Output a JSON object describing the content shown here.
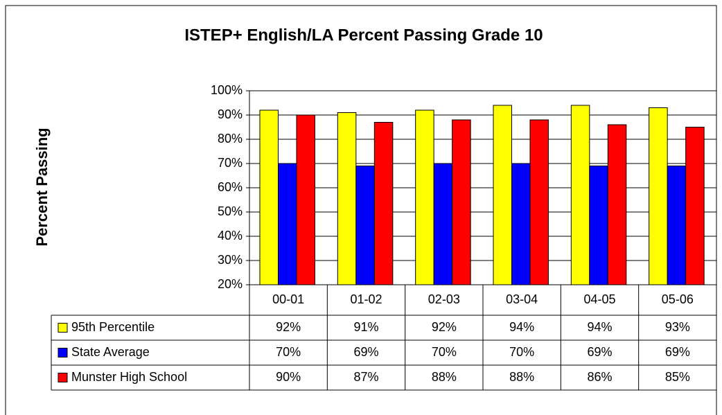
{
  "chart_data": {
    "type": "bar",
    "title": "ISTEP+ English/LA Percent Passing Grade 10",
    "y_label": "Percent Passing",
    "categories": [
      "00-01",
      "01-02",
      "02-03",
      "03-04",
      "04-05",
      "05-06"
    ],
    "series": [
      {
        "name": "95th Percentile",
        "color": "#ffff00",
        "values": [
          92,
          91,
          92,
          94,
          94,
          93
        ],
        "value_labels": [
          "92%",
          "91%",
          "92%",
          "94%",
          "94%",
          "93%"
        ]
      },
      {
        "name": "State Average",
        "color": "#0000ff",
        "values": [
          70,
          69,
          70,
          70,
          69,
          69
        ],
        "value_labels": [
          "70%",
          "69%",
          "70%",
          "70%",
          "69%",
          "69%"
        ]
      },
      {
        "name": "Munster High School",
        "color": "#ff0000",
        "values": [
          90,
          87,
          88,
          88,
          86,
          85
        ],
        "value_labels": [
          "90%",
          "87%",
          "88%",
          "88%",
          "86%",
          "85%"
        ]
      }
    ],
    "ylim": [
      20,
      100
    ],
    "yticks": [
      {
        "value": 20,
        "label": "20%"
      },
      {
        "value": 30,
        "label": "30%"
      },
      {
        "value": 40,
        "label": "40%"
      },
      {
        "value": 50,
        "label": "50%"
      },
      {
        "value": 60,
        "label": "60%"
      },
      {
        "value": 70,
        "label": "70%"
      },
      {
        "value": 80,
        "label": "80%"
      },
      {
        "value": 90,
        "label": "90%"
      },
      {
        "value": 100,
        "label": "100%"
      }
    ],
    "grid": true
  }
}
